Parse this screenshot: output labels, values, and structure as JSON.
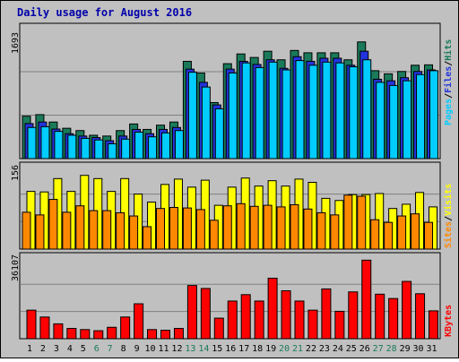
{
  "title": "Daily usage for August 2016",
  "colors": {
    "background": "#c0c0c0",
    "panel": "#c0c0c0",
    "grid": "#808080",
    "title": "#0000aa",
    "hits": "#1a7a5a",
    "files": "#2233dd",
    "pages": "#00ccff",
    "visits": "#ffff00",
    "sites": "#ff8800",
    "kbytes": "#ff0000",
    "weekend_label": "#1a7a5a",
    "weekday_label": "#000000"
  },
  "top_panel": {
    "ymax_label": "1693",
    "legend": {
      "pages": "Pages",
      "sep1": "/",
      "files": "Files",
      "sep2": "/",
      "hits": "Hits"
    }
  },
  "mid_panel": {
    "ymax_label": "156",
    "legend": {
      "sites": "Sites",
      "sep": "/",
      "visits": "Visits"
    }
  },
  "bottom_panel": {
    "ymax_label": "36107",
    "legend": {
      "kbytes": "KBytes"
    }
  },
  "chart_data": [
    {
      "type": "bar",
      "title": "Daily usage for August 2016",
      "categories": [
        "1",
        "2",
        "3",
        "4",
        "5",
        "6",
        "7",
        "8",
        "9",
        "10",
        "11",
        "12",
        "13",
        "14",
        "15",
        "16",
        "17",
        "18",
        "19",
        "20",
        "21",
        "22",
        "23",
        "24",
        "25",
        "26",
        "27",
        "28",
        "29",
        "30",
        "31"
      ],
      "weekend_days": [
        "6",
        "7",
        "13",
        "14",
        "20",
        "21",
        "27",
        "28"
      ],
      "ylim": [
        0,
        1693
      ],
      "ymax_label": "1693",
      "series": [
        {
          "name": "Hits",
          "values": [
            545,
            565,
            470,
            390,
            360,
            300,
            290,
            360,
            445,
            375,
            430,
            470,
            1250,
            1100,
            720,
            1220,
            1345,
            1300,
            1380,
            1270,
            1390,
            1360,
            1360,
            1360,
            1270,
            1500,
            1130,
            1090,
            1120,
            1200,
            1205
          ]
        },
        {
          "name": "Files",
          "values": [
            450,
            470,
            380,
            320,
            290,
            270,
            230,
            290,
            375,
            320,
            375,
            400,
            1150,
            980,
            690,
            1150,
            1250,
            1210,
            1270,
            1160,
            1310,
            1250,
            1290,
            1290,
            1200,
            1380,
            1020,
            1000,
            1040,
            1120,
            1140
          ]
        },
        {
          "name": "Pages",
          "values": [
            400,
            410,
            350,
            300,
            260,
            240,
            190,
            250,
            340,
            280,
            330,
            360,
            1110,
            920,
            640,
            1100,
            1230,
            1170,
            1240,
            1140,
            1260,
            1200,
            1240,
            1230,
            1180,
            1270,
            980,
            940,
            1000,
            1080,
            1130
          ]
        }
      ]
    },
    {
      "type": "bar",
      "categories": [
        "1",
        "2",
        "3",
        "4",
        "5",
        "6",
        "7",
        "8",
        "9",
        "10",
        "11",
        "12",
        "13",
        "14",
        "15",
        "16",
        "17",
        "18",
        "19",
        "20",
        "21",
        "22",
        "23",
        "24",
        "25",
        "26",
        "27",
        "28",
        "29",
        "30",
        "31"
      ],
      "ylim": [
        0,
        156
      ],
      "ymax_label": "156",
      "series": [
        {
          "name": "Visits",
          "values": [
            108,
            107,
            132,
            108,
            138,
            132,
            108,
            132,
            103,
            88,
            121,
            131,
            116,
            129,
            82,
            116,
            133,
            118,
            128,
            118,
            131,
            125,
            95,
            91,
            102,
            102,
            104,
            76,
            84,
            106,
            79
          ]
        },
        {
          "name": "Sites",
          "values": [
            69,
            64,
            93,
            69,
            81,
            72,
            72,
            68,
            62,
            42,
            76,
            78,
            77,
            74,
            54,
            81,
            85,
            80,
            82,
            79,
            83,
            75,
            68,
            64,
            101,
            99,
            55,
            50,
            62,
            66,
            50
          ]
        }
      ]
    },
    {
      "type": "bar",
      "categories": [
        "1",
        "2",
        "3",
        "4",
        "5",
        "6",
        "7",
        "8",
        "9",
        "10",
        "11",
        "12",
        "13",
        "14",
        "15",
        "16",
        "17",
        "18",
        "19",
        "20",
        "21",
        "22",
        "23",
        "24",
        "25",
        "26",
        "27",
        "28",
        "29",
        "30",
        "31"
      ],
      "ylim": [
        0,
        36107
      ],
      "ymax_label": "36107",
      "series": [
        {
          "name": "KBytes",
          "values": [
            12500,
            9500,
            6500,
            4500,
            4000,
            3500,
            5000,
            9500,
            15300,
            4000,
            3700,
            4500,
            23300,
            22000,
            9000,
            16500,
            19300,
            16500,
            26500,
            21000,
            16500,
            12500,
            21800,
            12000,
            20500,
            34400,
            19500,
            17600,
            25100,
            19700,
            12200
          ]
        }
      ]
    }
  ]
}
